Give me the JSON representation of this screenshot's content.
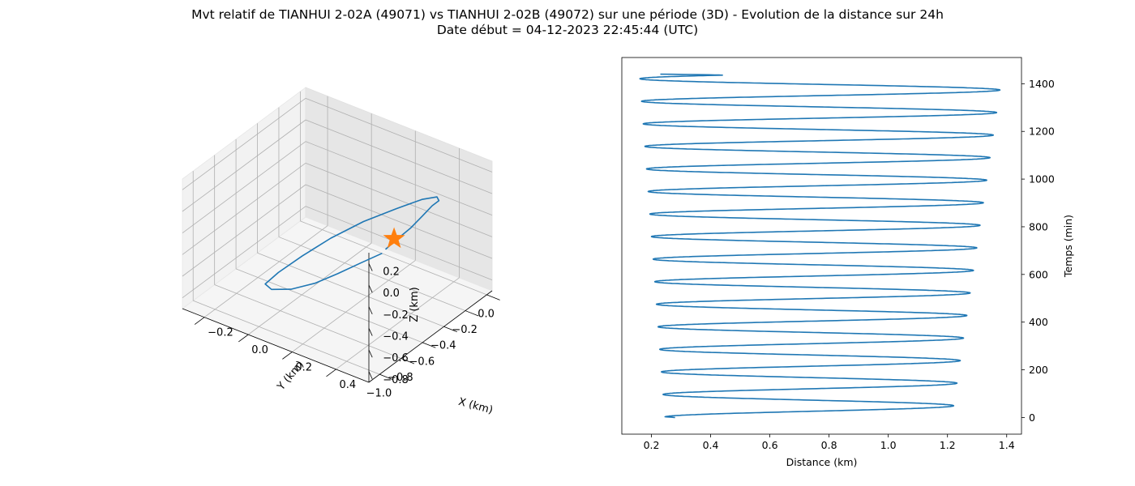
{
  "figure": {
    "title_line1": "Mvt relatif de TIANHUI 2-02A (49071) vs TIANHUI 2-02B (49072) sur une période (3D) - Evolution de la distance sur 24h",
    "title_line2": "Date début = 04-12-2023 22:45:44 (UTC)"
  },
  "chart_data": [
    {
      "type": "line",
      "projection": "3d",
      "xlabel": "X (km)",
      "ylabel": "Y (km)",
      "zlabel": "Z (km)",
      "x_ticks": [
        "−1.0",
        "−0.8",
        "−0.6",
        "−0.4",
        "−0.2",
        "0.0"
      ],
      "y_ticks": [
        "−0.2",
        "0.0",
        "0.2",
        "0.4"
      ],
      "z_ticks": [
        "−0.8",
        "−0.6",
        "−0.4",
        "−0.2",
        "0.0",
        "0.2"
      ],
      "xlim": [
        -1.1,
        0.05
      ],
      "ylim": [
        -0.3,
        0.55
      ],
      "zlim": [
        -0.9,
        0.3
      ],
      "grid": true,
      "series": [
        {
          "color": "#1f77b4",
          "x": [
            -0.3,
            -0.38,
            -0.47,
            -0.56,
            -0.66,
            -0.76,
            -0.86,
            -0.9,
            -0.88,
            -0.82,
            -0.72,
            -0.58,
            -0.42,
            -0.28,
            -0.18,
            -0.12,
            -0.13,
            -0.18,
            -0.26,
            -0.31
          ],
          "y": [
            0.22,
            0.16,
            0.1,
            0.04,
            -0.02,
            -0.06,
            -0.04,
            0.04,
            0.14,
            0.24,
            0.34,
            0.42,
            0.46,
            0.46,
            0.42,
            0.36,
            0.32,
            0.29,
            0.26,
            0.24
          ],
          "z": [
            -0.56,
            -0.64,
            -0.72,
            -0.79,
            -0.82,
            -0.78,
            -0.64,
            -0.44,
            -0.22,
            -0.02,
            0.14,
            0.22,
            0.22,
            0.14,
            0.0,
            -0.14,
            -0.26,
            -0.36,
            -0.44,
            -0.5
          ]
        }
      ],
      "marker": {
        "symbol": "star",
        "color": "#ff7f0e",
        "x": -0.23,
        "y": 0.24,
        "z": -0.46
      }
    },
    {
      "type": "line",
      "xlabel": "Distance (km)",
      "ylabel": "Temps (min)",
      "xlim": [
        0.1,
        1.45
      ],
      "ylim": [
        -70,
        1510
      ],
      "x_ticks": [
        "0.2",
        "0.4",
        "0.6",
        "0.8",
        "1.0",
        "1.2",
        "1.4"
      ],
      "y_ticks": [
        "0",
        "200",
        "400",
        "600",
        "800",
        "1000",
        "1200",
        "1400"
      ],
      "grid": false,
      "series": [
        {
          "color": "#1f77b4",
          "period_min": 94.6,
          "t_start": 0,
          "t_end": 1440,
          "start_distance": 0.28,
          "min_distance_start": 0.245,
          "min_distance_end": 0.16,
          "max_distance_start": 1.215,
          "max_distance_end": 1.385,
          "first_min_time": 2,
          "end_distance": 0.23
        }
      ]
    }
  ]
}
